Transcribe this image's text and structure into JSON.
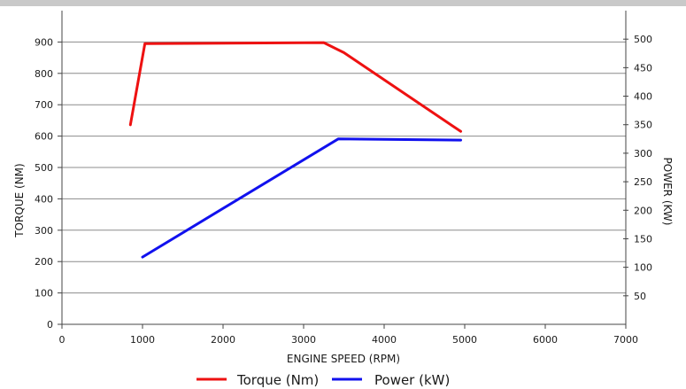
{
  "chart_data": {
    "type": "line",
    "title": "",
    "xlabel": "ENGINE SPEED (RPM)",
    "ylabel_left": "TORQUE (NM)",
    "ylabel_right": "POWER (KW)",
    "xlim": [
      0,
      7000
    ],
    "ylim_left": [
      0,
      1000
    ],
    "ylim_right": [
      0,
      550
    ],
    "xticks": [
      0,
      1000,
      2000,
      3000,
      4000,
      5000,
      6000,
      7000
    ],
    "yticks_left": [
      0,
      100,
      200,
      300,
      400,
      500,
      600,
      700,
      800,
      900
    ],
    "yticks_right": [
      50,
      100,
      150,
      200,
      250,
      300,
      350,
      400,
      450,
      500
    ],
    "grid": true,
    "legend_position": "bottom",
    "series": [
      {
        "name": "Torque (Nm)",
        "axis": "left",
        "color": "#ee1111",
        "x": [
          850,
          1030,
          3250,
          3500,
          4950
        ],
        "y": [
          636,
          895,
          898,
          866,
          615
        ]
      },
      {
        "name": "Power (kW)",
        "axis": "right",
        "color": "#1111ee",
        "x": [
          1000,
          3430,
          4950
        ],
        "y": [
          118,
          325,
          323
        ]
      }
    ]
  }
}
